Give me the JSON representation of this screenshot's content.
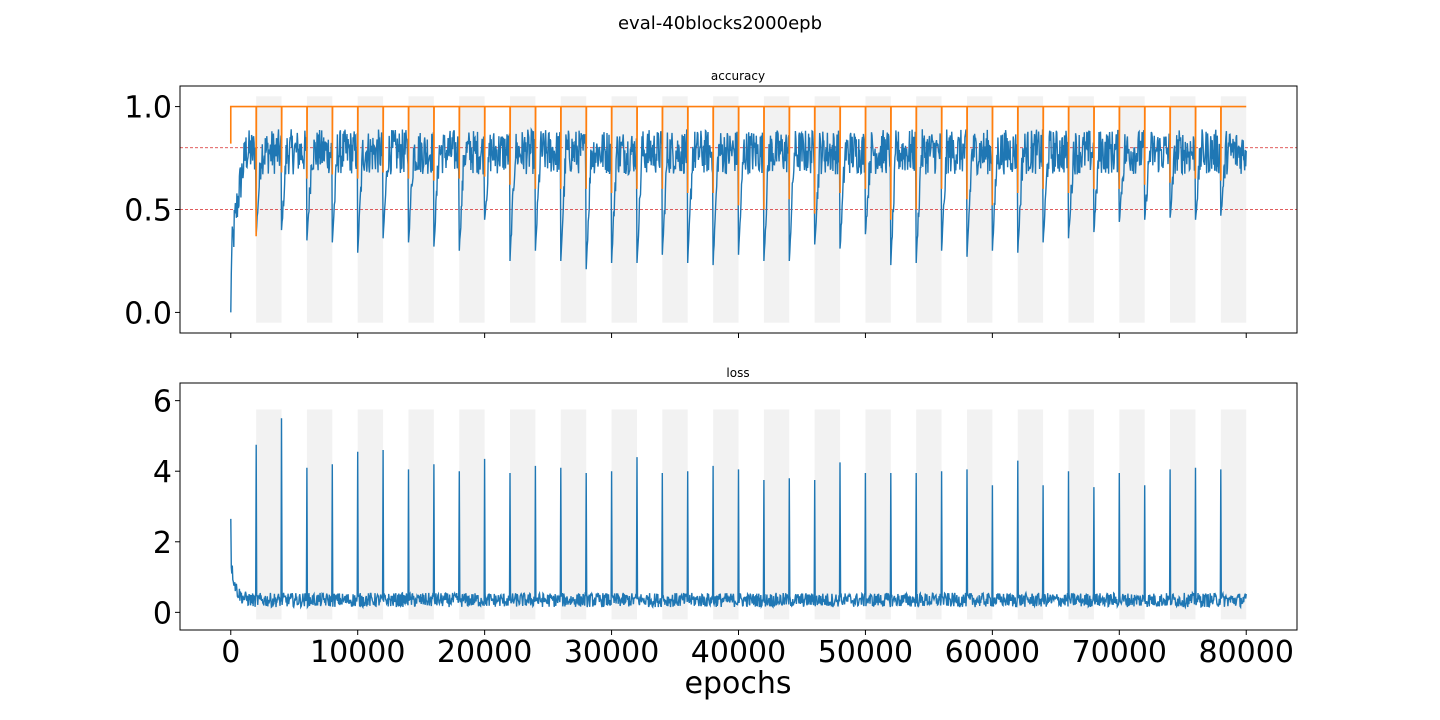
{
  "figure": {
    "title": "eval-40blocks2000epb",
    "xlabel": "epochs"
  },
  "colors": {
    "series": "#1f77b4",
    "running_max": "#ff7f0e",
    "threshold": "#d62728",
    "shade": "#f2f2f2"
  },
  "chart_data": [
    {
      "type": "line",
      "title": "accuracy",
      "xlim": [
        -4000,
        84000
      ],
      "ylim": [
        -0.1,
        1.1
      ],
      "xticks": [
        0,
        10000,
        20000,
        30000,
        40000,
        50000,
        60000,
        70000,
        80000
      ],
      "yticks": [
        0.0,
        0.5,
        1.0
      ],
      "ytick_labels": [
        "0.0",
        "0.5",
        "1.0"
      ],
      "show_xtick_labels": false,
      "grid": false,
      "thresholds": [
        0.8,
        0.5
      ],
      "shaded_blocks": [
        [
          2000,
          4000
        ],
        [
          6000,
          8000
        ],
        [
          10000,
          12000
        ],
        [
          14000,
          16000
        ],
        [
          18000,
          20000
        ],
        [
          22000,
          24000
        ],
        [
          26000,
          28000
        ],
        [
          30000,
          32000
        ],
        [
          34000,
          36000
        ],
        [
          38000,
          40000
        ],
        [
          42000,
          44000
        ],
        [
          46000,
          48000
        ],
        [
          50000,
          52000
        ],
        [
          54000,
          56000
        ],
        [
          58000,
          60000
        ],
        [
          62000,
          64000
        ],
        [
          66000,
          68000
        ],
        [
          70000,
          72000
        ],
        [
          74000,
          76000
        ],
        [
          78000,
          80000
        ]
      ],
      "block_length": 2000,
      "noisy_series": {
        "baseline_start": 0.15,
        "baseline_plateau": 0.78,
        "band_low": 0.68,
        "band_high": 0.88,
        "drops_at": [
          2000,
          4000,
          6000,
          8000,
          10000,
          12000,
          14000,
          16000,
          18000,
          20000,
          22000,
          24000,
          26000,
          28000,
          30000,
          32000,
          34000,
          36000,
          38000,
          40000,
          42000,
          44000,
          46000,
          48000,
          50000,
          52000,
          54000,
          56000,
          58000,
          60000,
          62000,
          64000,
          66000,
          68000,
          70000,
          72000,
          74000,
          76000,
          78000
        ],
        "drop_minimums": [
          0.38,
          0.4,
          0.35,
          0.34,
          0.29,
          0.36,
          0.34,
          0.32,
          0.3,
          0.45,
          0.25,
          0.3,
          0.25,
          0.21,
          0.24,
          0.24,
          0.28,
          0.24,
          0.23,
          0.28,
          0.25,
          0.25,
          0.33,
          0.31,
          0.38,
          0.23,
          0.24,
          0.3,
          0.27,
          0.3,
          0.29,
          0.34,
          0.36,
          0.39,
          0.44,
          0.45,
          0.46,
          0.45,
          0.47
        ]
      },
      "running_max_series": {
        "start": 0.82,
        "plateau": 1.0,
        "drop_minimums": [
          0.37,
          0.68,
          0.65,
          0.67,
          0.65,
          0.68,
          0.65,
          0.64,
          0.65,
          0.66,
          0.62,
          0.6,
          0.6,
          0.6,
          0.58,
          0.6,
          0.6,
          0.58,
          0.58,
          0.52,
          0.5,
          0.55,
          0.48,
          0.58,
          0.6,
          0.45,
          0.5,
          0.6,
          0.55,
          0.52,
          0.58,
          0.6,
          0.58,
          0.6,
          0.6,
          0.62,
          0.63,
          0.65,
          0.64
        ]
      }
    },
    {
      "type": "line",
      "title": "loss",
      "xlim": [
        -4000,
        84000
      ],
      "ylim": [
        -0.5,
        6.5
      ],
      "xticks": [
        0,
        10000,
        20000,
        30000,
        40000,
        50000,
        60000,
        70000,
        80000
      ],
      "xtick_labels": [
        "0",
        "10000",
        "20000",
        "30000",
        "40000",
        "50000",
        "60000",
        "70000",
        "80000"
      ],
      "yticks": [
        0,
        2,
        4,
        6
      ],
      "ytick_labels": [
        "0",
        "2",
        "4",
        "6"
      ],
      "grid": false,
      "shaded_blocks": [
        [
          2000,
          4000
        ],
        [
          6000,
          8000
        ],
        [
          10000,
          12000
        ],
        [
          14000,
          16000
        ],
        [
          18000,
          20000
        ],
        [
          22000,
          24000
        ],
        [
          26000,
          28000
        ],
        [
          30000,
          32000
        ],
        [
          34000,
          36000
        ],
        [
          38000,
          40000
        ],
        [
          42000,
          44000
        ],
        [
          46000,
          48000
        ],
        [
          50000,
          52000
        ],
        [
          54000,
          56000
        ],
        [
          58000,
          60000
        ],
        [
          62000,
          64000
        ],
        [
          66000,
          68000
        ],
        [
          70000,
          72000
        ],
        [
          74000,
          76000
        ],
        [
          78000,
          80000
        ]
      ],
      "noisy_series": {
        "start": 2.65,
        "early": 1.5,
        "baseline_plateau": 0.35,
        "band_low": 0.15,
        "band_high": 0.6,
        "spikes_at": [
          2000,
          4000,
          6000,
          8000,
          10000,
          12000,
          14000,
          16000,
          18000,
          20000,
          22000,
          24000,
          26000,
          28000,
          30000,
          32000,
          34000,
          36000,
          38000,
          40000,
          42000,
          44000,
          46000,
          48000,
          50000,
          52000,
          54000,
          56000,
          58000,
          60000,
          62000,
          64000,
          66000,
          68000,
          70000,
          72000,
          74000,
          76000,
          78000
        ],
        "spike_peaks": [
          4.75,
          5.5,
          4.1,
          4.2,
          4.55,
          4.6,
          4.05,
          4.2,
          4.0,
          4.35,
          3.95,
          4.15,
          4.1,
          3.95,
          4.0,
          4.4,
          3.95,
          4.0,
          4.15,
          4.05,
          3.75,
          3.8,
          3.75,
          4.25,
          3.95,
          3.95,
          3.95,
          4.0,
          4.05,
          3.6,
          4.3,
          3.6,
          4.0,
          3.55,
          3.95,
          3.6,
          4.05,
          4.1,
          4.05
        ]
      }
    }
  ]
}
